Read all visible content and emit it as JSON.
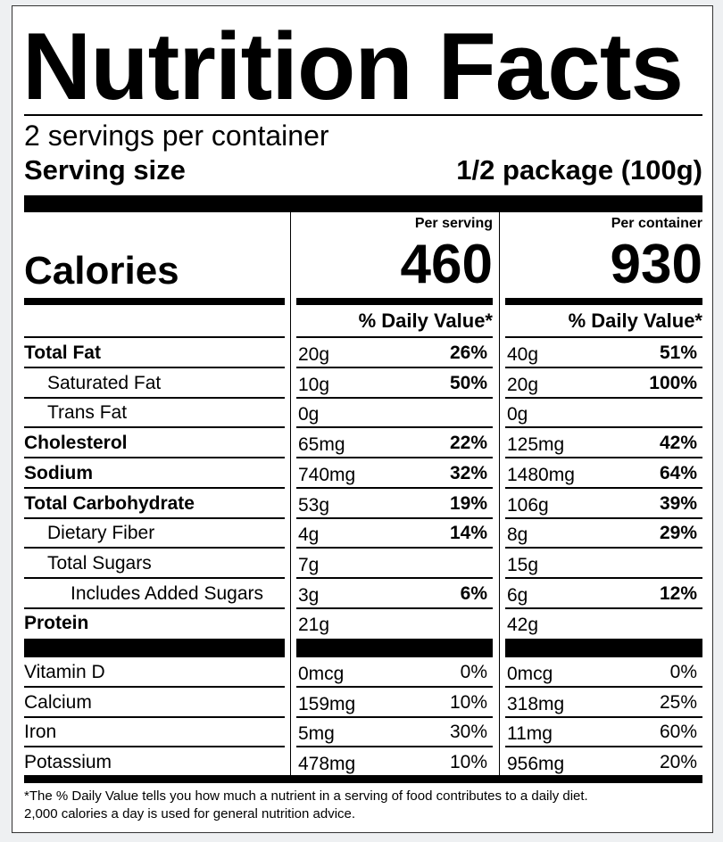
{
  "title": "Nutrition Facts",
  "servings_per_container": "2 servings per container",
  "serving_size_label": "Serving size",
  "serving_size_value": "1/2 package (100g)",
  "calories_label": "Calories",
  "per_serving_label": "Per serving",
  "per_container_label": "Per container",
  "calories_per_serving": "460",
  "calories_per_container": "930",
  "daily_value_header": "% Daily Value*",
  "nutrients": [
    {
      "name": "Total Fat",
      "bold": true,
      "indent": 0,
      "serving_amount": "20g",
      "serving_dv": "26%",
      "container_amount": "40g",
      "container_dv": "51%"
    },
    {
      "name": "Saturated Fat",
      "bold": false,
      "indent": 1,
      "serving_amount": "10g",
      "serving_dv": "50%",
      "container_amount": "20g",
      "container_dv": "100%"
    },
    {
      "name": "Trans Fat",
      "bold": false,
      "indent": 1,
      "serving_amount": "0g",
      "serving_dv": "",
      "container_amount": "0g",
      "container_dv": ""
    },
    {
      "name": "Cholesterol",
      "bold": true,
      "indent": 0,
      "serving_amount": "65mg",
      "serving_dv": "22%",
      "container_amount": "125mg",
      "container_dv": "42%"
    },
    {
      "name": "Sodium",
      "bold": true,
      "indent": 0,
      "serving_amount": "740mg",
      "serving_dv": "32%",
      "container_amount": "1480mg",
      "container_dv": "64%"
    },
    {
      "name": "Total Carbohydrate",
      "bold": true,
      "indent": 0,
      "serving_amount": "53g",
      "serving_dv": "19%",
      "container_amount": "106g",
      "container_dv": "39%"
    },
    {
      "name": "Dietary Fiber",
      "bold": false,
      "indent": 1,
      "serving_amount": "4g",
      "serving_dv": "14%",
      "container_amount": "8g",
      "container_dv": "29%"
    },
    {
      "name": "Total Sugars",
      "bold": false,
      "indent": 1,
      "serving_amount": "7g",
      "serving_dv": "",
      "container_amount": "15g",
      "container_dv": ""
    },
    {
      "name": "Includes Added Sugars",
      "bold": false,
      "indent": 2,
      "serving_amount": "3g",
      "serving_dv": "6%",
      "container_amount": "6g",
      "container_dv": "12%"
    },
    {
      "name": "Protein",
      "bold": true,
      "indent": 0,
      "serving_amount": "21g",
      "serving_dv": "",
      "container_amount": "42g",
      "container_dv": ""
    }
  ],
  "vitamins": [
    {
      "name": "Vitamin D",
      "serving_amount": "0mcg",
      "serving_dv": "0%",
      "container_amount": "0mcg",
      "container_dv": "0%"
    },
    {
      "name": "Calcium",
      "serving_amount": "159mg",
      "serving_dv": "10%",
      "container_amount": "318mg",
      "container_dv": "25%"
    },
    {
      "name": "Iron",
      "serving_amount": "5mg",
      "serving_dv": "30%",
      "container_amount": "11mg",
      "container_dv": "60%"
    },
    {
      "name": "Potassium",
      "serving_amount": "478mg",
      "serving_dv": "10%",
      "container_amount": "956mg",
      "container_dv": "20%"
    }
  ],
  "footnote_line1": "*The % Daily Value tells you how much a nutrient in a serving of food contributes to a daily diet.",
  "footnote_line2": "2,000 calories a day is used for general nutrition advice."
}
